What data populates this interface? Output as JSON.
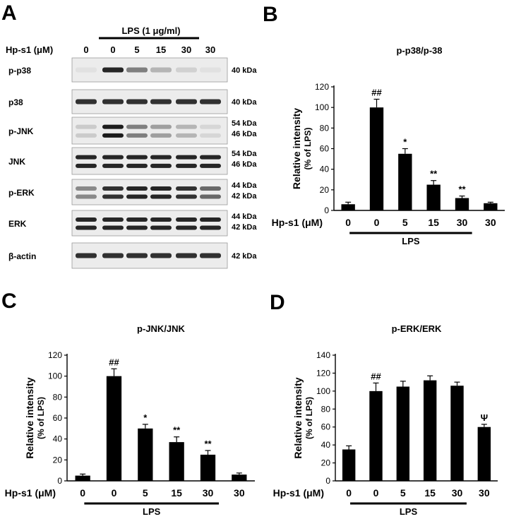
{
  "panel_letters": [
    "A",
    "B",
    "C",
    "D"
  ],
  "blot": {
    "treatment_label": "LPS (1 μg/ml)",
    "dose_row_label": "Hp-s1 (μM)",
    "lane_doses": [
      "0",
      "0",
      "5",
      "15",
      "30",
      "30"
    ],
    "rows": [
      {
        "label": "p-p38",
        "kda": [
          "40 kDa"
        ],
        "intensity": [
          0.04,
          0.9,
          0.5,
          0.25,
          0.12,
          0.05
        ],
        "bands": 1
      },
      {
        "label": "p38",
        "kda": [
          "40 kDa"
        ],
        "intensity": [
          0.85,
          0.85,
          0.85,
          0.85,
          0.85,
          0.85
        ],
        "bands": 1
      },
      {
        "label": "p-JNK",
        "kda": [
          "54 kDa",
          "46 kDa"
        ],
        "intensity": [
          0.15,
          0.95,
          0.5,
          0.35,
          0.25,
          0.1
        ],
        "bands": 2
      },
      {
        "label": "JNK",
        "kda": [
          "54 kDa",
          "46 kDa"
        ],
        "intensity": [
          0.9,
          0.9,
          0.9,
          0.9,
          0.9,
          0.9
        ],
        "bands": 2
      },
      {
        "label": "p-ERK",
        "kda": [
          "44 kDa",
          "42 kDa"
        ],
        "intensity": [
          0.45,
          0.85,
          0.9,
          0.9,
          0.85,
          0.6
        ],
        "bands": 2
      },
      {
        "label": "ERK",
        "kda": [
          "44 kDa",
          "42 kDa"
        ],
        "intensity": [
          0.9,
          0.9,
          0.9,
          0.9,
          0.9,
          0.9
        ],
        "bands": 2
      },
      {
        "label": "β-actin",
        "kda": [
          "42 kDa"
        ],
        "intensity": [
          0.85,
          0.85,
          0.85,
          0.85,
          0.85,
          0.85
        ],
        "bands": 1
      }
    ]
  },
  "chart_data": [
    {
      "panel": "B",
      "type": "bar",
      "title": "p-p38/p-38",
      "ylabel": "Relative intensity",
      "ylabel2": "(% of LPS)",
      "xlabel": "Hp-s1 (μM)",
      "group_label": "LPS",
      "categories": [
        "0",
        "0",
        "5",
        "15",
        "30",
        "30"
      ],
      "values": [
        6,
        100,
        55,
        25,
        12,
        7
      ],
      "errors": [
        2,
        8,
        5,
        4,
        2,
        1
      ],
      "annotations": [
        "",
        "##",
        "*",
        "**",
        "**",
        ""
      ],
      "ylim": [
        0,
        120
      ],
      "yticks": [
        0,
        20,
        40,
        60,
        80,
        100,
        120
      ],
      "grid": false,
      "bar_color": "#000000"
    },
    {
      "panel": "C",
      "type": "bar",
      "title": "p-JNK/JNK",
      "ylabel": "Relative intensity",
      "ylabel2": "(% of LPS)",
      "xlabel": "Hp-s1 (μM)",
      "group_label": "LPS",
      "categories": [
        "0",
        "0",
        "5",
        "15",
        "30",
        "30"
      ],
      "values": [
        5,
        100,
        50,
        37,
        25,
        6
      ],
      "errors": [
        1.5,
        7,
        4,
        5,
        4,
        1.5
      ],
      "annotations": [
        "",
        "##",
        "*",
        "**",
        "**",
        ""
      ],
      "ylim": [
        0,
        120
      ],
      "yticks": [
        0,
        20,
        40,
        60,
        80,
        100,
        120
      ],
      "grid": false,
      "bar_color": "#000000"
    },
    {
      "panel": "D",
      "type": "bar",
      "title": "p-ERK/ERK",
      "ylabel": "Relative intensity",
      "ylabel2": "(% of LPS)",
      "xlabel": "Hp-s1 (μM)",
      "group_label": "LPS",
      "categories": [
        "0",
        "0",
        "5",
        "15",
        "30",
        "30"
      ],
      "values": [
        35,
        100,
        105,
        112,
        106,
        60
      ],
      "errors": [
        4,
        9,
        6,
        5,
        4,
        3
      ],
      "annotations": [
        "",
        "##",
        "",
        "",
        "",
        "Ψ"
      ],
      "ylim": [
        0,
        140
      ],
      "yticks": [
        0,
        20,
        40,
        60,
        80,
        100,
        120,
        140
      ],
      "grid": false,
      "bar_color": "#000000"
    }
  ]
}
